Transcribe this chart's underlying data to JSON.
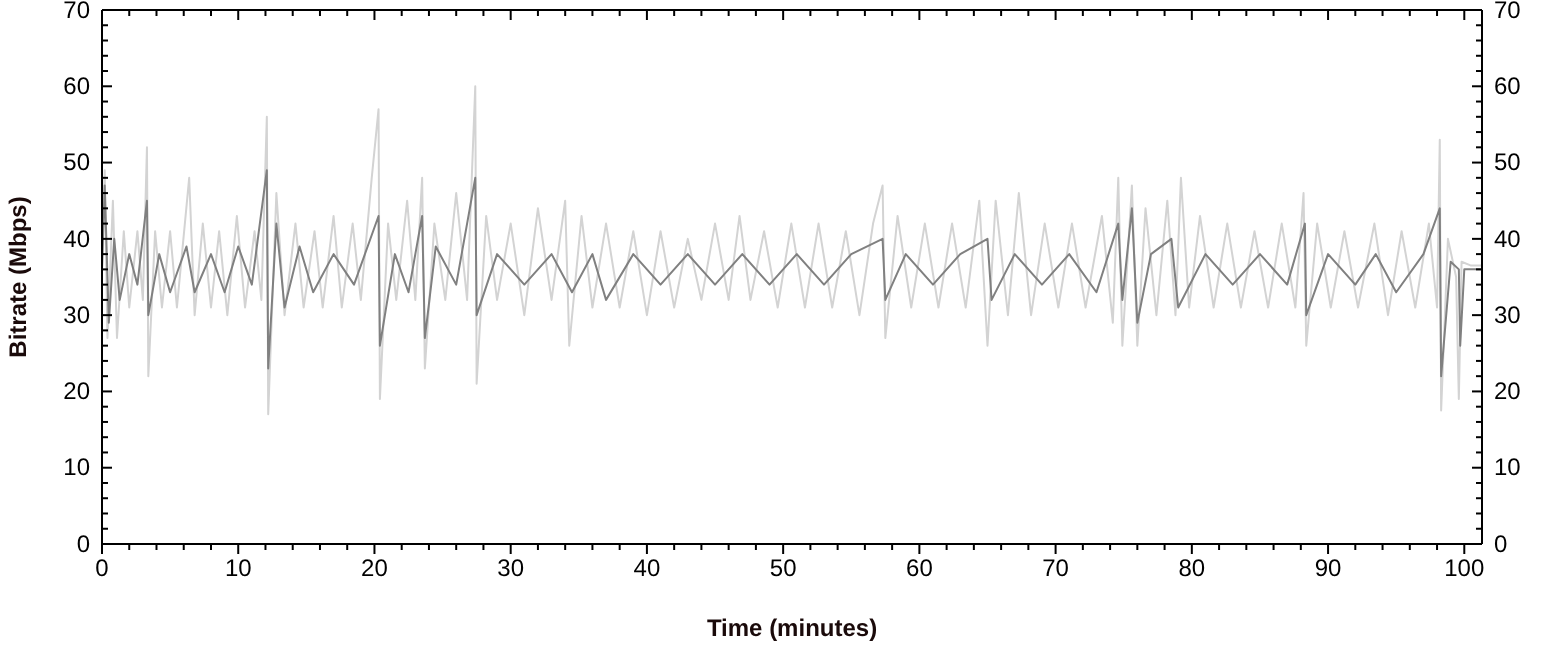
{
  "chart_data": {
    "type": "line",
    "xlabel": "Time (minutes)",
    "ylabel": "Bitrate (Mbps)",
    "xlim": [
      0,
      101.3
    ],
    "ylim": [
      0,
      70
    ],
    "y2lim": [
      0,
      70
    ],
    "xticks": [
      0,
      {
        "value": 2,
        "label": null
      },
      {
        "value": 4,
        "label": null
      },
      {
        "value": 6,
        "label": null
      },
      {
        "value": 8,
        "label": null
      },
      10,
      {
        "value": 12,
        "label": null
      },
      {
        "value": 14,
        "label": null
      },
      {
        "value": 16,
        "label": null
      },
      {
        "value": 18,
        "label": null
      },
      20,
      {
        "value": 22,
        "label": null
      },
      {
        "value": 24,
        "label": null
      },
      {
        "value": 26,
        "label": null
      },
      {
        "value": 28,
        "label": null
      },
      30,
      {
        "value": 32,
        "label": null
      },
      {
        "value": 34,
        "label": null
      },
      {
        "value": 36,
        "label": null
      },
      {
        "value": 38,
        "label": null
      },
      40,
      {
        "value": 42,
        "label": null
      },
      {
        "value": 44,
        "label": null
      },
      {
        "value": 46,
        "label": null
      },
      {
        "value": 48,
        "label": null
      },
      50,
      {
        "value": 52,
        "label": null
      },
      {
        "value": 54,
        "label": null
      },
      {
        "value": 56,
        "label": null
      },
      {
        "value": 58,
        "label": null
      },
      60,
      {
        "value": 62,
        "label": null
      },
      {
        "value": 64,
        "label": null
      },
      {
        "value": 66,
        "label": null
      },
      {
        "value": 68,
        "label": null
      },
      70,
      {
        "value": 72,
        "label": null
      },
      {
        "value": 74,
        "label": null
      },
      {
        "value": 76,
        "label": null
      },
      {
        "value": 78,
        "label": null
      },
      80,
      {
        "value": 82,
        "label": null
      },
      {
        "value": 84,
        "label": null
      },
      {
        "value": 86,
        "label": null
      },
      {
        "value": 88,
        "label": null
      },
      90,
      {
        "value": 92,
        "label": null
      },
      {
        "value": 94,
        "label": null
      },
      {
        "value": 96,
        "label": null
      },
      {
        "value": 98,
        "label": null
      },
      100
    ],
    "yticks": [
      0,
      {
        "value": 2,
        "label": null
      },
      {
        "value": 4,
        "label": null
      },
      {
        "value": 6,
        "label": null
      },
      {
        "value": 8,
        "label": null
      },
      10,
      {
        "value": 12,
        "label": null
      },
      {
        "value": 14,
        "label": null
      },
      {
        "value": 16,
        "label": null
      },
      {
        "value": 18,
        "label": null
      },
      20,
      {
        "value": 22,
        "label": null
      },
      {
        "value": 24,
        "label": null
      },
      {
        "value": 26,
        "label": null
      },
      {
        "value": 28,
        "label": null
      },
      30,
      {
        "value": 32,
        "label": null
      },
      {
        "value": 34,
        "label": null
      },
      {
        "value": 36,
        "label": null
      },
      {
        "value": 38,
        "label": null
      },
      40,
      {
        "value": 42,
        "label": null
      },
      {
        "value": 44,
        "label": null
      },
      {
        "value": 46,
        "label": null
      },
      {
        "value": 48,
        "label": null
      },
      50,
      {
        "value": 52,
        "label": null
      },
      {
        "value": 54,
        "label": null
      },
      {
        "value": 56,
        "label": null
      },
      {
        "value": 58,
        "label": null
      },
      60,
      {
        "value": 62,
        "label": null
      },
      {
        "value": 64,
        "label": null
      },
      {
        "value": 66,
        "label": null
      },
      {
        "value": 68,
        "label": null
      },
      70
    ],
    "y2ticks": [
      0,
      {
        "value": 2,
        "label": null
      },
      {
        "value": 4,
        "label": null
      },
      {
        "value": 6,
        "label": null
      },
      {
        "value": 8,
        "label": null
      },
      10,
      {
        "value": 12,
        "label": null
      },
      {
        "value": 14,
        "label": null
      },
      {
        "value": 16,
        "label": null
      },
      {
        "value": 18,
        "label": null
      },
      20,
      {
        "value": 22,
        "label": null
      },
      {
        "value": 24,
        "label": null
      },
      {
        "value": 26,
        "label": null
      },
      {
        "value": 28,
        "label": null
      },
      30,
      {
        "value": 32,
        "label": null
      },
      {
        "value": 34,
        "label": null
      },
      {
        "value": 36,
        "label": null
      },
      {
        "value": 38,
        "label": null
      },
      40,
      {
        "value": 42,
        "label": null
      },
      {
        "value": 44,
        "label": null
      },
      {
        "value": 46,
        "label": null
      },
      {
        "value": 48,
        "label": null
      },
      50,
      {
        "value": 52,
        "label": null
      },
      {
        "value": 54,
        "label": null
      },
      {
        "value": 56,
        "label": null
      },
      {
        "value": 58,
        "label": null
      },
      60,
      {
        "value": 62,
        "label": null
      },
      {
        "value": 64,
        "label": null
      },
      {
        "value": 66,
        "label": null
      },
      {
        "value": 68,
        "label": null
      },
      70
    ],
    "marker": "none",
    "line_style": "solid",
    "series": [
      {
        "color": "#d3d3d3",
        "x": [
          0,
          0.2,
          0.4,
          0.8,
          1.1,
          1.6,
          2.0,
          2.6,
          3.0,
          3.3,
          3.4,
          3.9,
          4.4,
          5.0,
          5.5,
          6.4,
          6.8,
          7.4,
          8.0,
          8.6,
          9.2,
          9.9,
          10.5,
          11.2,
          11.7,
          12.1,
          12.2,
          12.8,
          13.4,
          14.2,
          14.8,
          15.6,
          16.2,
          17.0,
          17.6,
          18.4,
          19.0,
          19.8,
          20.3,
          20.4,
          21.0,
          21.6,
          22.4,
          23.0,
          23.5,
          23.7,
          24.4,
          25.2,
          26.0,
          26.8,
          27.4,
          27.5,
          28.2,
          29.0,
          30.0,
          31.0,
          32.0,
          33.0,
          34.0,
          34.3,
          35.2,
          36.0,
          37.0,
          38.0,
          39.0,
          40.0,
          41.0,
          42.0,
          43.0,
          44.0,
          45.0,
          46.0,
          46.8,
          47.6,
          48.6,
          49.6,
          50.6,
          51.6,
          52.6,
          53.6,
          54.6,
          55.6,
          56.6,
          57.3,
          57.5,
          58.4,
          59.4,
          60.4,
          61.4,
          62.4,
          63.4,
          64.4,
          65.0,
          65.6,
          66.5,
          67.3,
          68.2,
          69.2,
          70.2,
          71.2,
          72.2,
          73.4,
          74.2,
          74.6,
          74.9,
          75.6,
          76.0,
          76.6,
          77.4,
          78.2,
          78.8,
          79.2,
          79.8,
          80.6,
          81.6,
          82.6,
          83.6,
          84.6,
          85.6,
          86.6,
          87.6,
          88.2,
          88.4,
          89.2,
          90.2,
          91.2,
          92.2,
          93.4,
          94.4,
          95.4,
          96.4,
          97.4,
          98.0,
          98.2,
          98.3,
          98.8,
          99.4,
          99.6,
          99.8,
          100.5,
          101.3
        ],
        "values": [
          36,
          49,
          27,
          45,
          27,
          41,
          31,
          41,
          32,
          52,
          22,
          41,
          31,
          41,
          31,
          48,
          30,
          42,
          31,
          41,
          30,
          43,
          31,
          41,
          32,
          56,
          17,
          46,
          30,
          42,
          31,
          41,
          31,
          43,
          31,
          42,
          32,
          48,
          57,
          19,
          42,
          32,
          45,
          32,
          48,
          23,
          42,
          32,
          46,
          32,
          60,
          21,
          43,
          32,
          42,
          30,
          44,
          32,
          45,
          26,
          43,
          31,
          42,
          31,
          41,
          30,
          41,
          31,
          40,
          32,
          42,
          32,
          43,
          32,
          41,
          31,
          42,
          31,
          42,
          31,
          41,
          30,
          42,
          47,
          27,
          43,
          31,
          42,
          31,
          42,
          31,
          45,
          26,
          45,
          30,
          46,
          30,
          42,
          31,
          42,
          31,
          43,
          29,
          48,
          26,
          47,
          26,
          44,
          30,
          45,
          30,
          48,
          31,
          43,
          31,
          42,
          31,
          41,
          31,
          42,
          31,
          46,
          26,
          42,
          31,
          41,
          31,
          42,
          30,
          41,
          31,
          42,
          31,
          53,
          17.5,
          40,
          35,
          19,
          37,
          36.5,
          36.5
        ]
      },
      {
        "color": "#808080",
        "x": [
          0,
          0.2,
          0.5,
          0.9,
          1.3,
          2.0,
          2.6,
          3.3,
          3.4,
          4.2,
          5.0,
          6.2,
          6.8,
          8,
          9,
          10,
          11,
          12.1,
          12.2,
          12.8,
          13.4,
          14.5,
          15.5,
          17,
          18.5,
          20.3,
          20.4,
          21.5,
          22.5,
          23.5,
          23.7,
          24.5,
          26,
          27.4,
          27.5,
          29,
          31,
          33,
          34.5,
          36,
          37,
          39,
          41,
          43,
          45,
          47,
          49,
          51,
          53,
          55,
          57.3,
          57.5,
          59,
          61,
          63,
          65,
          65.3,
          67,
          69,
          71,
          73,
          74.6,
          74.9,
          75.6,
          76,
          77,
          78.5,
          79,
          81,
          83,
          85,
          87,
          88.3,
          88.4,
          90,
          92,
          93.5,
          95,
          97,
          98.2,
          98.3,
          99,
          99.6,
          99.7,
          100,
          101.3
        ],
        "values": [
          36,
          47,
          29,
          40,
          32,
          38,
          34,
          45,
          30,
          38,
          33,
          39,
          33,
          38,
          33,
          39,
          34,
          49,
          23,
          42,
          31,
          39,
          33,
          38,
          34,
          43,
          26,
          38,
          33,
          43,
          27,
          39,
          34,
          48,
          30,
          38,
          34,
          38,
          33,
          38,
          32,
          38,
          34,
          38,
          34,
          38,
          34,
          38,
          34,
          38,
          40,
          32,
          38,
          34,
          38,
          40,
          32,
          38,
          34,
          38,
          33,
          42,
          32,
          44,
          29,
          38,
          40,
          31,
          38,
          34,
          38,
          34,
          42,
          30,
          38,
          34,
          38,
          33,
          38,
          44,
          22,
          37,
          36,
          26,
          36,
          36
        ]
      }
    ]
  }
}
